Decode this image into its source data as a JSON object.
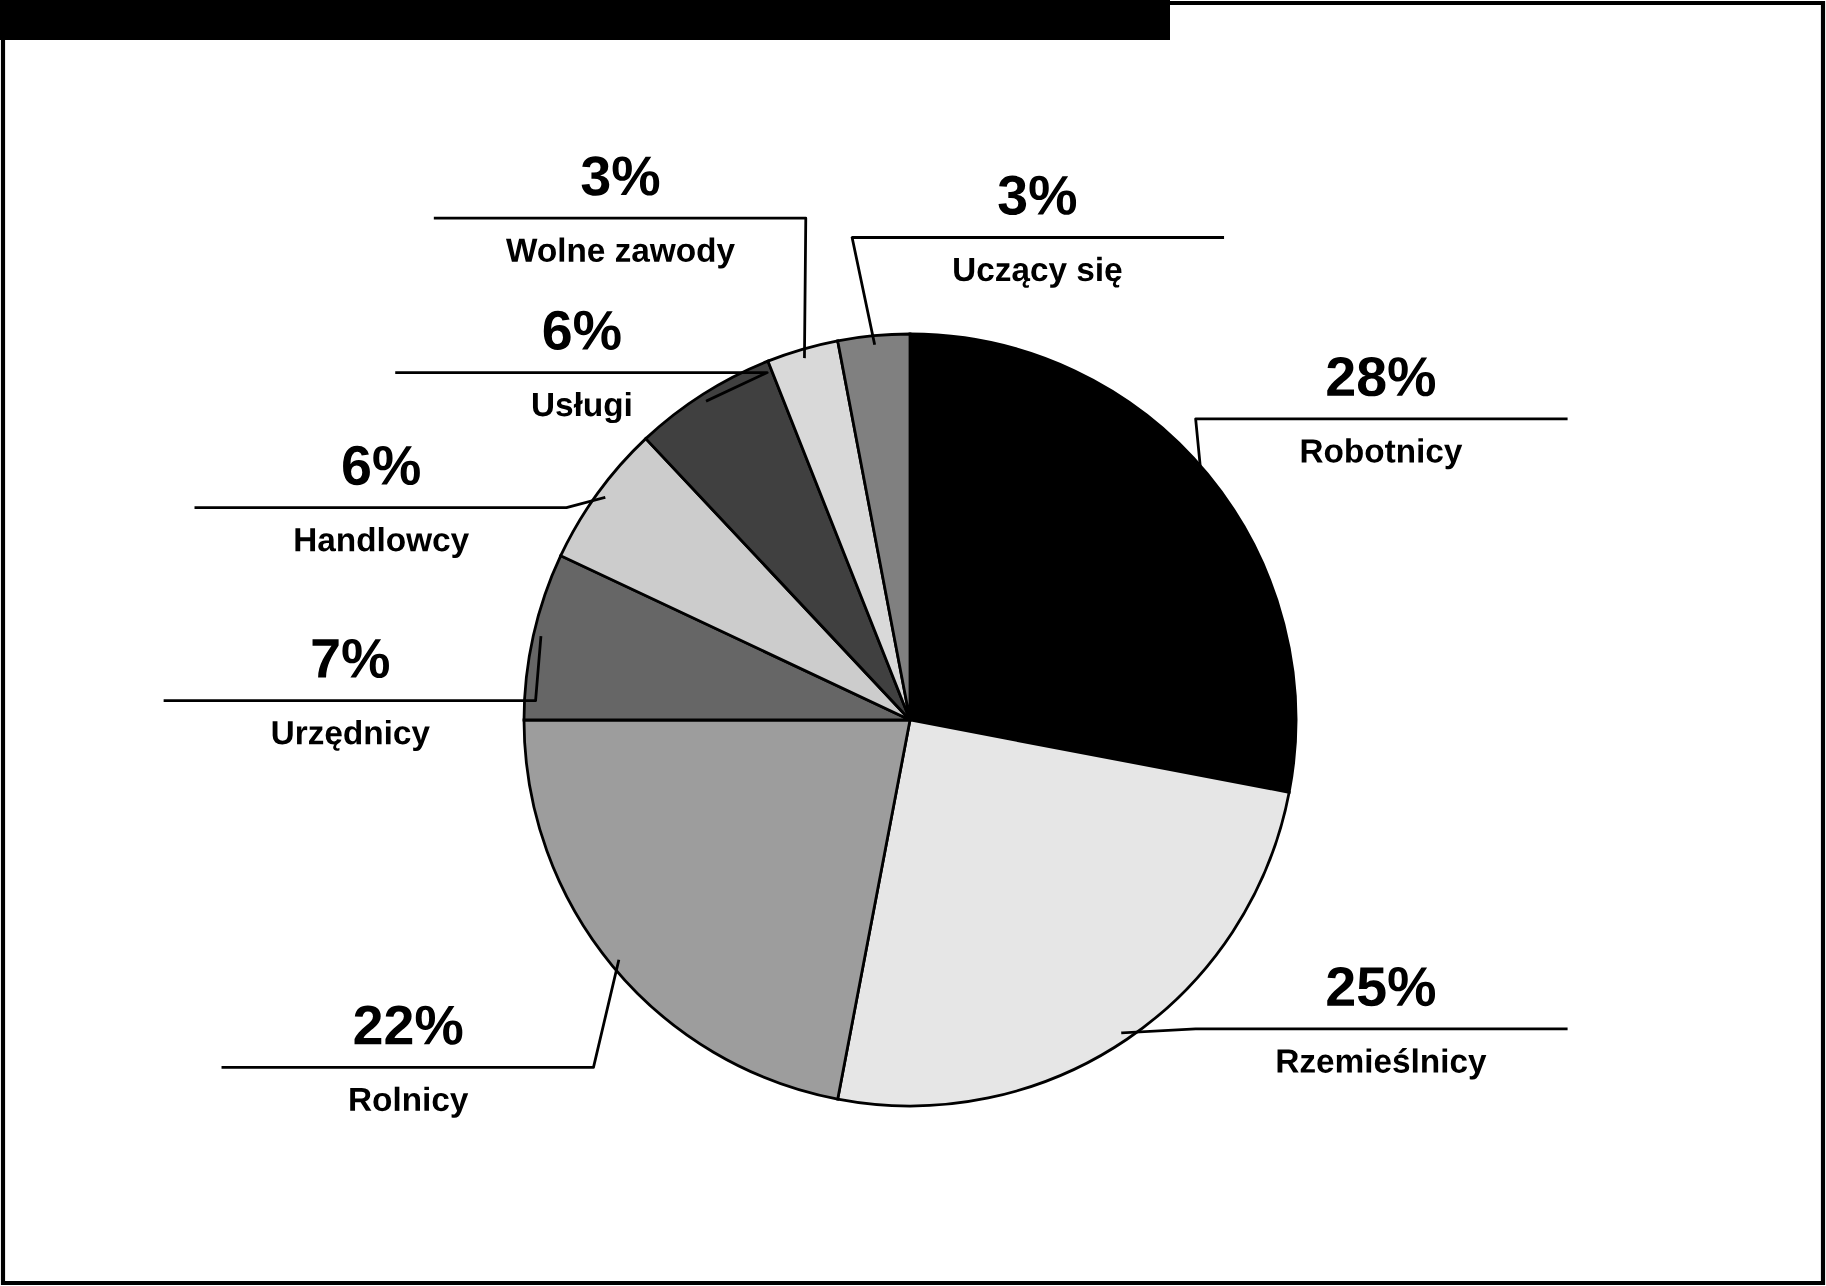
{
  "chart_data": {
    "type": "pie",
    "categories": [
      "Robotnicy",
      "Rzemieślnicy",
      "Rolnicy",
      "Urzędnicy",
      "Handlowcy",
      "Usługi",
      "Wolne zawody",
      "Uczący się"
    ],
    "values": [
      28,
      25,
      22,
      7,
      6,
      6,
      3,
      3
    ],
    "value_labels": [
      "28%",
      "25%",
      "22%",
      "7%",
      "6%",
      "6%",
      "3%",
      "3%"
    ],
    "colors": [
      "#000000",
      "#e6e6e6",
      "#9d9d9d",
      "#666666",
      "#cccccc",
      "#404040",
      "#d9d9d9",
      "#808080"
    ],
    "legend": false
  }
}
